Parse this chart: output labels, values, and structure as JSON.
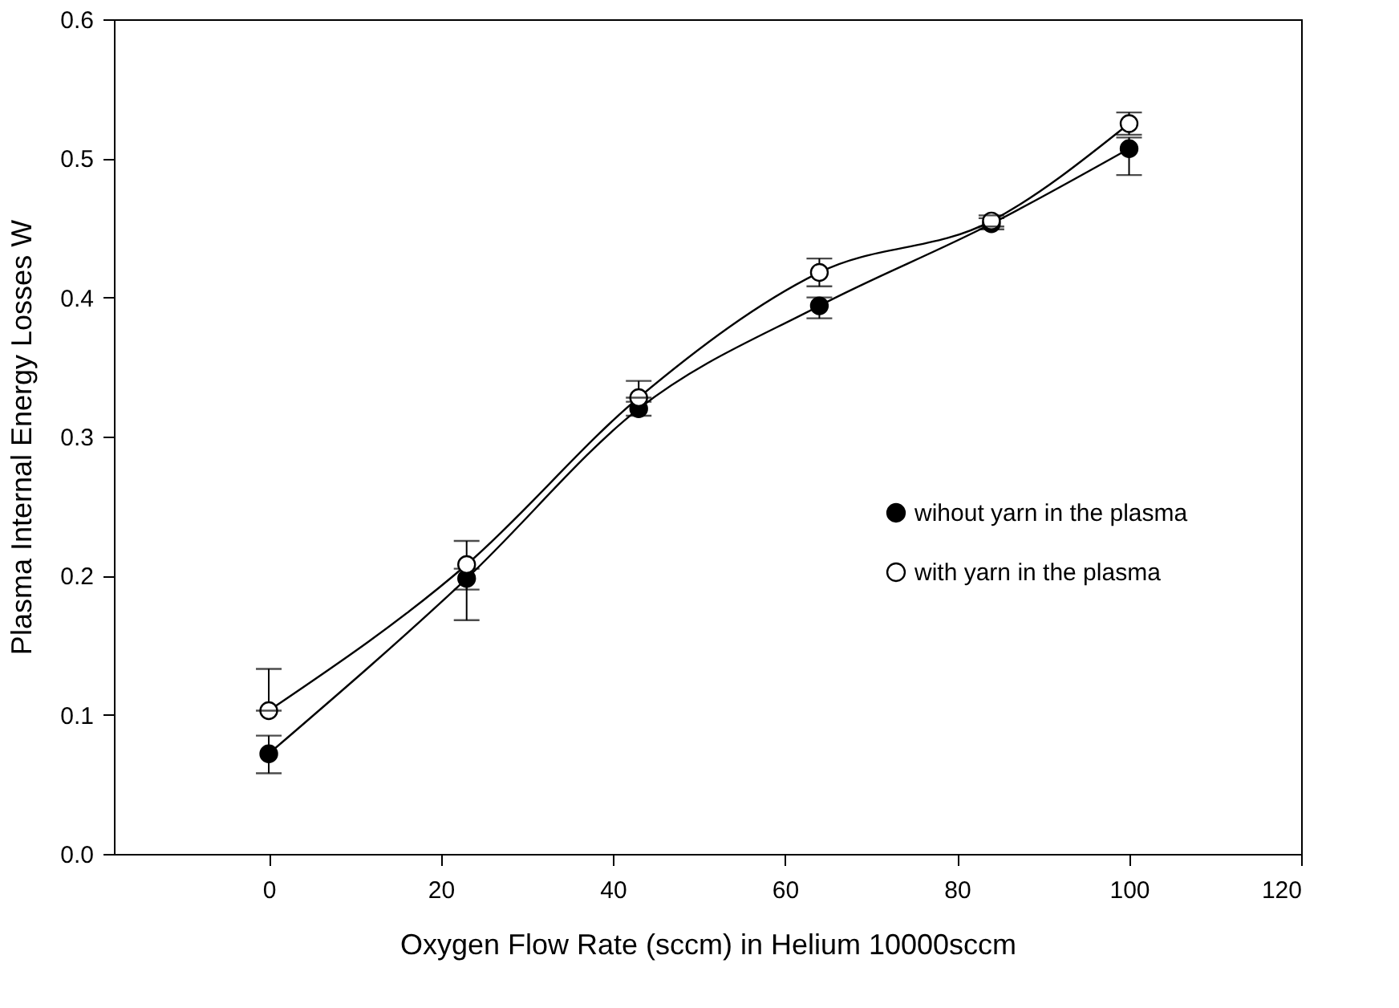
{
  "chart_data": {
    "type": "line",
    "xlabel": "Oxygen Flow Rate (sccm) in Helium 10000sccm",
    "ylabel": "Plasma Internal Energy Losses W",
    "x": [
      0,
      23,
      43,
      64,
      84,
      100
    ],
    "series": [
      {
        "name": "wihout yarn in the plasma",
        "color": "#000000",
        "values": [
          0.072,
          0.198,
          0.32,
          0.394,
          0.453,
          0.507
        ],
        "errors": [
          [
            0.058,
            0.085
          ],
          [
            0.168,
            0.205
          ],
          [
            0.315,
            0.325
          ],
          [
            0.385,
            0.4
          ],
          [
            0.449,
            0.457
          ],
          [
            0.488,
            0.515
          ]
        ]
      },
      {
        "name": "with yarn in the plasma",
        "color": "#ffffff",
        "values": [
          0.103,
          0.208,
          0.328,
          0.418,
          0.455,
          0.525
        ],
        "errors": [
          [
            0.103,
            0.133
          ],
          [
            0.19,
            0.225
          ],
          [
            0.328,
            0.34
          ],
          [
            0.408,
            0.428
          ],
          [
            0.451,
            0.459
          ],
          [
            0.517,
            0.533
          ]
        ]
      }
    ],
    "xlim": [
      -18,
      120
    ],
    "xticks": [
      0,
      20,
      40,
      60,
      80,
      100,
      120
    ],
    "ylim": [
      0.0,
      0.6
    ],
    "yticks": [
      {
        "value": 0.0,
        "label": "0.0"
      },
      0.1,
      0.2,
      0.3,
      0.4,
      0.5,
      0.6
    ],
    "marker": "circle",
    "line_style": "solid",
    "legend": "right",
    "grid": false
  }
}
